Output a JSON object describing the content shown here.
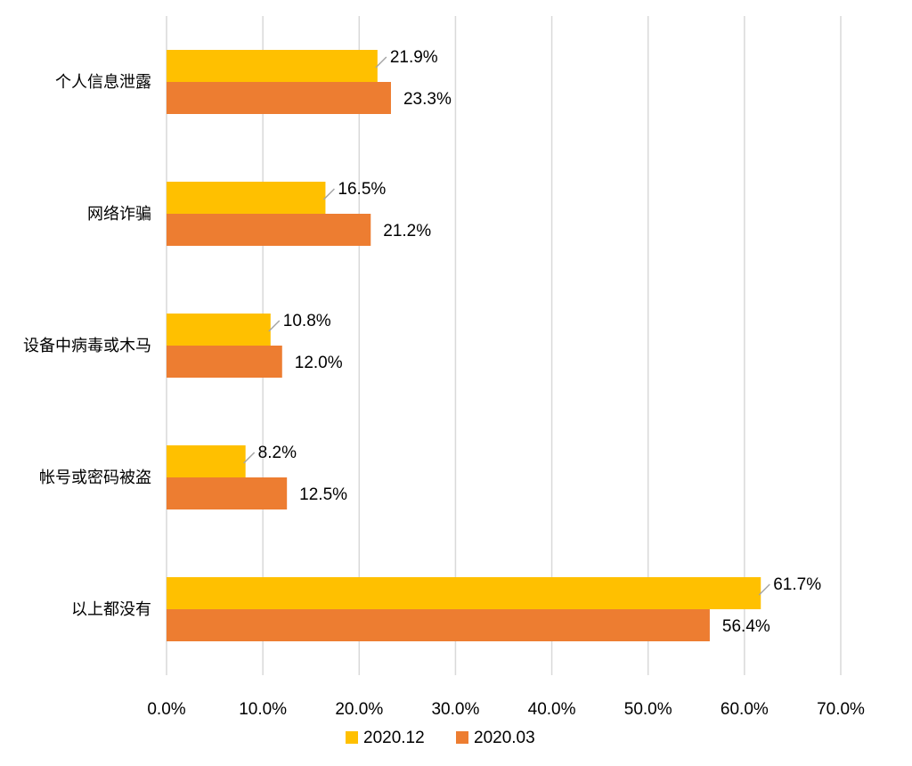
{
  "chart_data": {
    "type": "bar",
    "orientation": "horizontal",
    "categories": [
      "个人信息泄露",
      "网络诈骗",
      "设备中病毒或木马",
      "帐号或密码被盗",
      "以上都没有"
    ],
    "series": [
      {
        "name": "2020.12",
        "color": "#ffc000",
        "values": [
          21.9,
          16.5,
          10.8,
          8.2,
          61.7
        ],
        "labels": [
          "21.9%",
          "16.5%",
          "10.8%",
          "8.2%",
          "61.7%"
        ]
      },
      {
        "name": "2020.03",
        "color": "#ed7d31",
        "values": [
          23.3,
          21.2,
          12.0,
          12.5,
          56.4
        ],
        "labels": [
          "23.3%",
          "21.2%",
          "12.0%",
          "12.5%",
          "56.4%"
        ]
      }
    ],
    "xlim": [
      0,
      70
    ],
    "xticks": [
      "0.0%",
      "10.0%",
      "20.0%",
      "30.0%",
      "40.0%",
      "50.0%",
      "60.0%",
      "70.0%"
    ],
    "grid": true,
    "legend_position": "bottom"
  }
}
